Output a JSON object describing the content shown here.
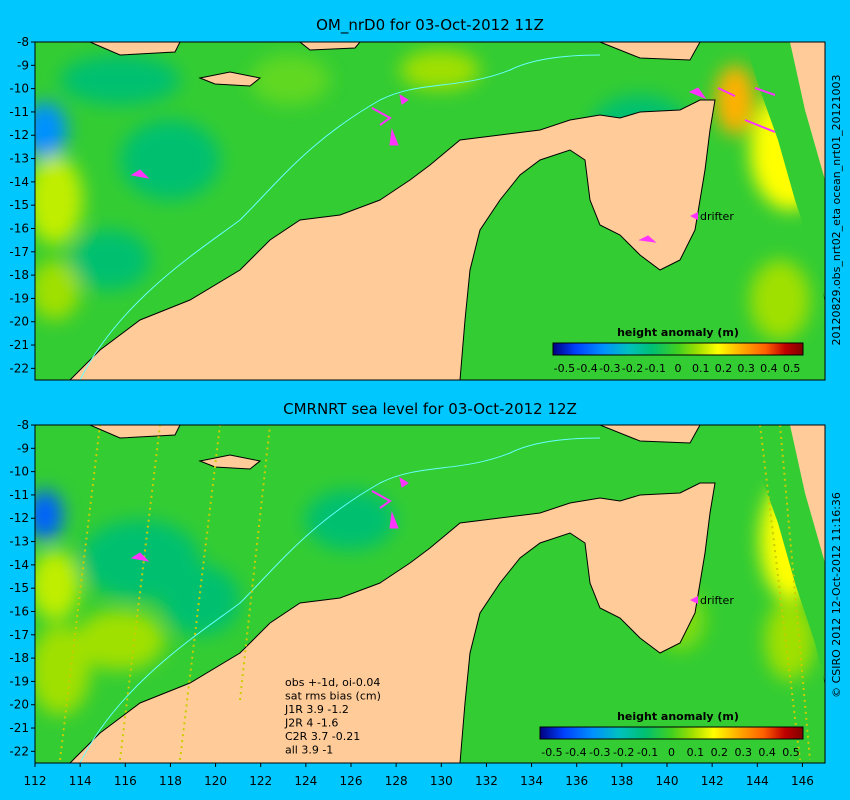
{
  "chart_data": [
    {
      "type": "heatmap",
      "title": "OM_nrD0 for 03-Oct-2012 11Z",
      "yticks": [
        -8,
        -9,
        -10,
        -11,
        -12,
        -13,
        -14,
        -15,
        -16,
        -17,
        -18,
        -19,
        -20,
        -21,
        -22
      ],
      "ylim": [
        -22.5,
        -8
      ],
      "xlim": [
        112,
        147
      ],
      "side_label": "20120829.obs_nrt02_eta     ocean_nrt01_20121003",
      "colorbar": {
        "label": "height anomaly (m)",
        "ticks": [
          "-0.5",
          "-0.4",
          "-0.3",
          "-0.2",
          "-0.1",
          "0",
          "0.1",
          "0.2",
          "0.3",
          "0.4",
          "0.5"
        ],
        "range": [
          -0.5,
          0.5
        ]
      },
      "annotations": [
        {
          "text": "drifter",
          "x": 141.8,
          "y": -15.6
        }
      ]
    },
    {
      "type": "heatmap",
      "title": "CMRNRT sea level  for 03-Oct-2012 12Z",
      "yticks": [
        -8,
        -9,
        -10,
        -11,
        -12,
        -13,
        -14,
        -15,
        -16,
        -17,
        -18,
        -19,
        -20,
        -21,
        -22
      ],
      "xticks": [
        112,
        114,
        116,
        118,
        120,
        122,
        124,
        126,
        128,
        130,
        132,
        134,
        136,
        138,
        140,
        142,
        144,
        146
      ],
      "ylim": [
        -22.5,
        -8
      ],
      "xlim": [
        112,
        147
      ],
      "side_label": "© CSIRO 2012    12-Oct-2012 11:16:36",
      "colorbar": {
        "label": "height anomaly (m)",
        "ticks": [
          "-0.5",
          "-0.4",
          "-0.3",
          "-0.2",
          "-0.1",
          "0",
          "0.1",
          "0.2",
          "0.3",
          "0.4",
          "0.5"
        ],
        "range": [
          -0.5,
          0.5
        ]
      },
      "annotations": [
        {
          "text": "drifter",
          "x": 141.8,
          "y": -15.6
        }
      ],
      "stats_text": [
        "obs +-1d, oi-0.04",
        "sat rms bias (cm)",
        "J1R   3.9 -1.2",
        "J2R   4 -1.6",
        "C2R   3.7 -0.21",
        "all 3.9 -1"
      ]
    }
  ],
  "colors": {
    "background": "#00c8ff",
    "land": "#ffcc99",
    "sea_base": "#33cc33",
    "contour": "#66ffff",
    "vectors": "#ff33ff",
    "colormap": [
      "#000080",
      "#0040ff",
      "#0090ff",
      "#00c8c8",
      "#00c080",
      "#40d020",
      "#a0e000",
      "#ffff00",
      "#ffb000",
      "#ff6000",
      "#c00000",
      "#800000"
    ]
  }
}
